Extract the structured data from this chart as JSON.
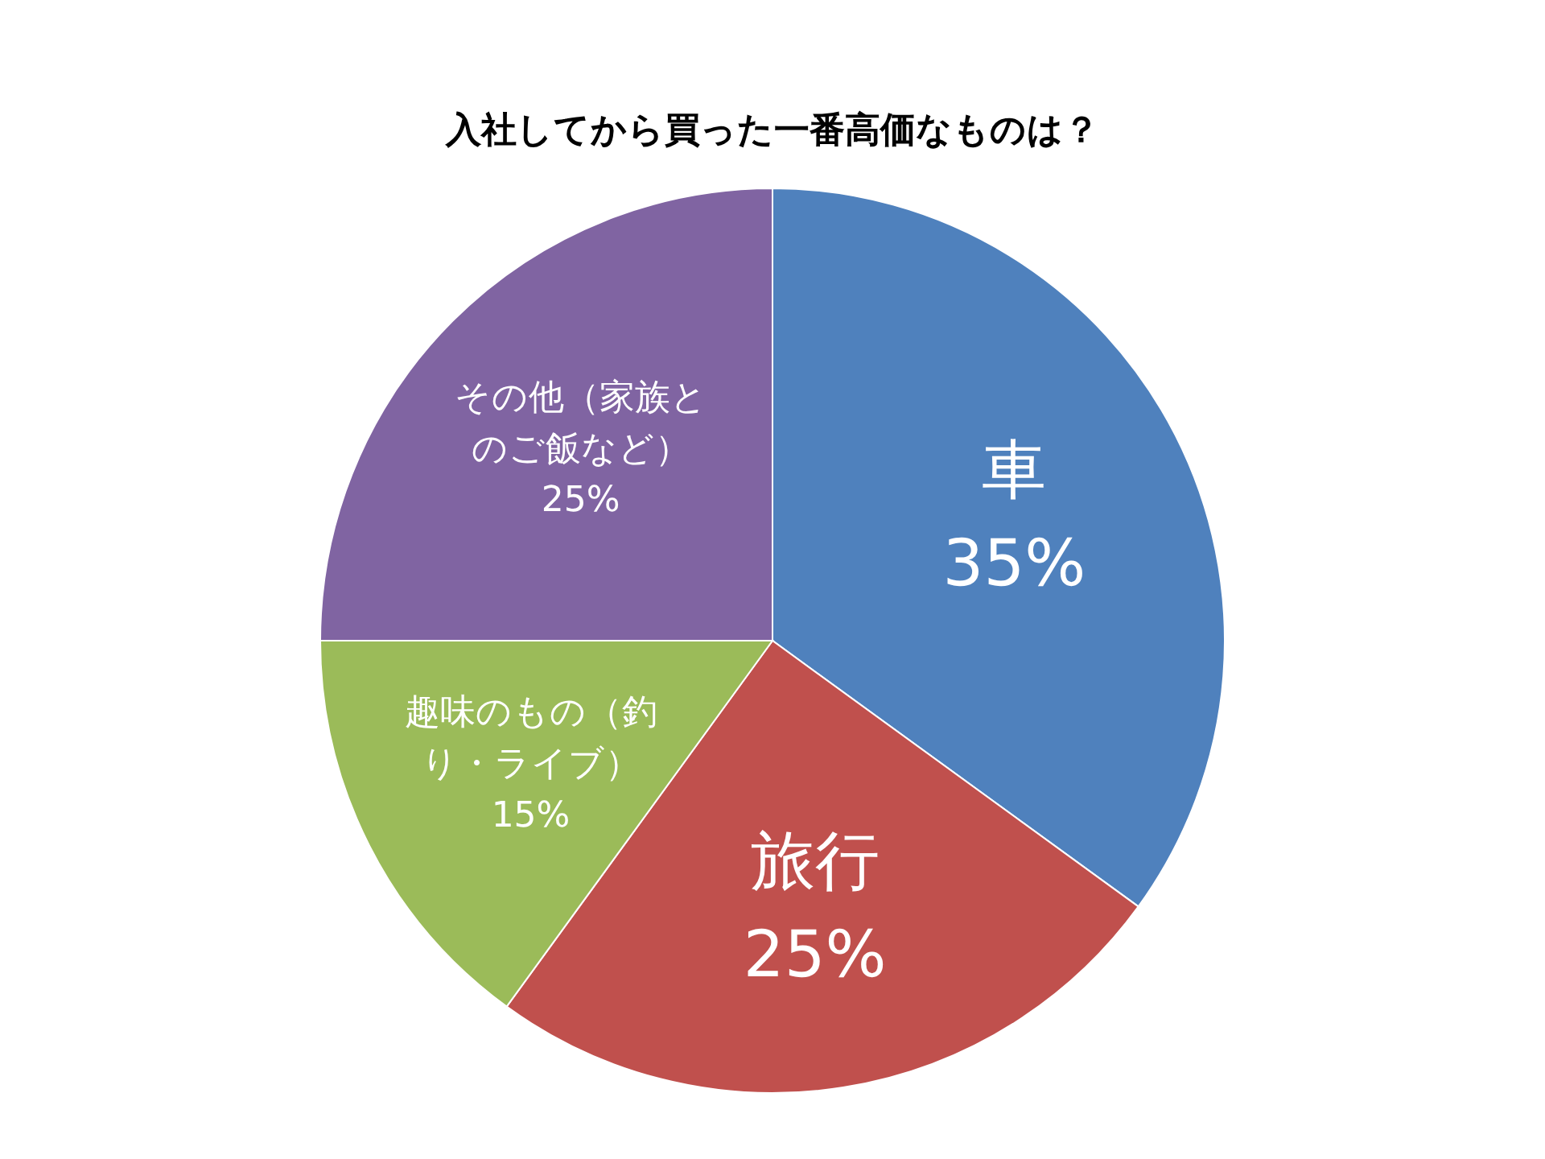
{
  "chart_data": {
    "type": "pie",
    "title": "入社してから買った一番高価なものは？",
    "categories": [
      "車",
      "旅行",
      "趣味のもの（釣り・ライブ）",
      "その他（家族とのご飯など）"
    ],
    "values": [
      35,
      25,
      15,
      25
    ],
    "colors": [
      "#4f81bd",
      "#c0504d",
      "#9bbb59",
      "#8064a2"
    ],
    "value_labels": [
      "35%",
      "25%",
      "15%",
      "25%"
    ],
    "legend": false
  }
}
